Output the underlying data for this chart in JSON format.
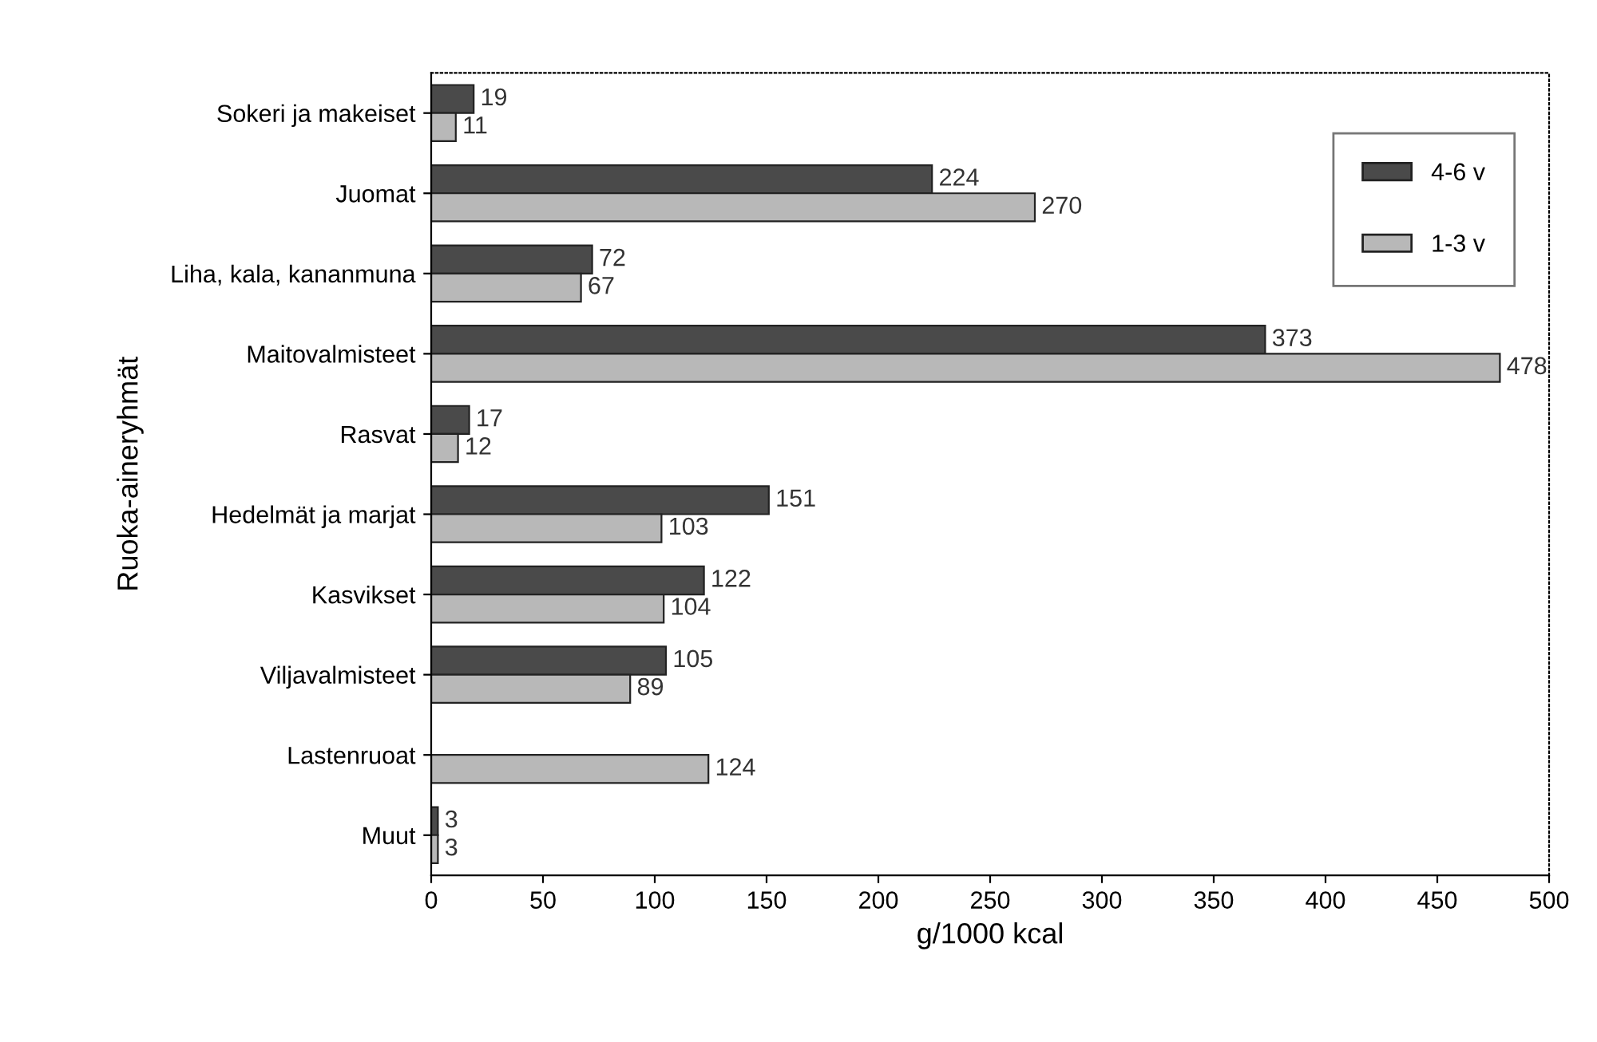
{
  "chart_data": {
    "type": "bar",
    "orientation": "horizontal",
    "xlabel": "g/1000 kcal",
    "ylabel": "Ruoka-aineryhmät",
    "categories": [
      "Sokeri ja makeiset",
      "Juomat",
      "Liha, kala, kananmuna",
      "Maitovalmisteet",
      "Rasvat",
      "Hedelmät ja marjat",
      "Kasvikset",
      "Viljavalmisteet",
      "Lastenruoat",
      "Muut"
    ],
    "series": [
      {
        "name": "4-6 v",
        "color": "#4a4a4a",
        "values": [
          19,
          224,
          72,
          373,
          17,
          151,
          122,
          105,
          null,
          3
        ]
      },
      {
        "name": "1-3 v",
        "color": "#b8b8b8",
        "values": [
          11,
          270,
          67,
          478,
          12,
          103,
          104,
          89,
          124,
          3
        ]
      }
    ],
    "xlim": [
      0,
      500
    ],
    "xticks": [
      0,
      50,
      100,
      150,
      200,
      250,
      300,
      350,
      400,
      450,
      500
    ],
    "data_labels": true,
    "legend": "top right",
    "grid": false
  }
}
